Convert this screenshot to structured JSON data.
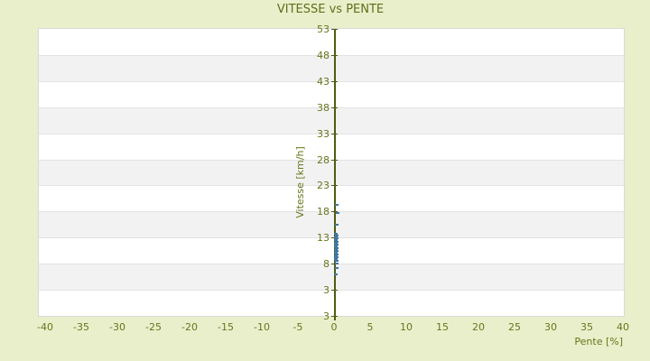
{
  "chart_data": {
    "type": "scatter",
    "title": "VITESSE vs PENTE",
    "xlabel": "Pente [%]",
    "ylabel": "Vitesse [km/h]",
    "x_ticks": [
      -40,
      -35,
      -30,
      -25,
      -20,
      -15,
      -10,
      -5,
      0,
      5,
      10,
      15,
      20,
      25,
      30,
      35,
      40
    ],
    "y_ticks": [
      53,
      48,
      43,
      38,
      33,
      28,
      23,
      18,
      13,
      8,
      3
    ],
    "y_tick_labels_rendered": [
      "53",
      "48",
      "43",
      "38",
      "33",
      "28",
      "23",
      "18",
      "13",
      "8",
      "3",
      "3"
    ],
    "xlim": [
      -41,
      40
    ],
    "ylim": [
      -2,
      53
    ],
    "grid": "horizontal alternating bands between y ticks, no vertical gridlines",
    "legend": "none",
    "axis_note": "y-axis line drawn vertically at Pente = 0; extra duplicate '3' label at plot bottom edge",
    "series": [
      {
        "name": "Vitesse",
        "color": "#4177a4",
        "marker": "small horizontal dash",
        "points": [
          [
            0.3,
            19.3
          ],
          [
            0.4,
            17.7
          ],
          [
            0.3,
            15.5
          ],
          [
            0.1,
            13.7
          ],
          [
            0.2,
            13.4
          ],
          [
            0.1,
            13.1
          ],
          [
            0.2,
            12.8
          ],
          [
            0.1,
            12.5
          ],
          [
            0.2,
            12.2
          ],
          [
            0.1,
            11.9
          ],
          [
            0.2,
            11.6
          ],
          [
            0.1,
            11.3
          ],
          [
            0.2,
            11.0
          ],
          [
            0.1,
            10.7
          ],
          [
            0.2,
            10.4
          ],
          [
            0.1,
            10.1
          ],
          [
            0.2,
            9.8
          ],
          [
            0.1,
            9.5
          ],
          [
            0.2,
            9.2
          ],
          [
            0.1,
            8.9
          ],
          [
            0.2,
            8.6
          ],
          [
            0.2,
            8.0
          ],
          [
            0.3,
            7.2
          ],
          [
            0.1,
            5.9
          ]
        ]
      }
    ],
    "colors": {
      "background": "#e9efcb",
      "band_light": "#ffffff",
      "band_dark": "#f2f2f2",
      "band_boundary": "#e3e3e3",
      "plot_border": "#d9d9d9",
      "axis_line": "#4e5c12",
      "text": "#68761c",
      "title_text": "#5f6e1a",
      "point": "#4177a4"
    }
  }
}
